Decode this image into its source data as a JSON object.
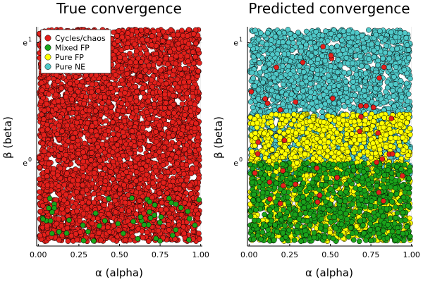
{
  "chart_data": [
    {
      "type": "scatter",
      "title": "True convergence",
      "xlabel": "α (alpha)",
      "ylabel": "β (beta)",
      "xlim": [
        -0.01,
        1.01
      ],
      "x_ticks": [
        0.0,
        0.25,
        0.5,
        0.75,
        1.0
      ],
      "x_tick_labels": [
        "0.00",
        "0.25",
        "0.50",
        "0.75",
        "1.00"
      ],
      "y_scale": "log",
      "ylim": [
        0.5,
        3.1
      ],
      "y_ticks": [
        1.0,
        2.718281828
      ],
      "y_tick_labels": [
        [
          "e",
          "0"
        ],
        [
          "e",
          "1"
        ]
      ],
      "grid": true,
      "legend_position": "top-left",
      "legend": [
        {
          "label": "Cycles/chaos",
          "color": "#e3201b"
        },
        {
          "label": "Mixed FP",
          "color": "#1aa31a"
        },
        {
          "label": "Pure FP",
          "color": "#ffff00"
        },
        {
          "label": "Pure NE",
          "color": "#4fc9c9"
        }
      ],
      "series_regions": [
        {
          "name": "Cycles/chaos",
          "color": "#e3201b",
          "y_range": [
            0.52,
            3.05
          ],
          "density": 1.0
        },
        {
          "name": "Mixed FP",
          "color": "#1aa31a",
          "y_range": [
            0.52,
            0.75
          ],
          "density": 0.05
        }
      ]
    },
    {
      "type": "scatter",
      "title": "Predicted convergence",
      "xlabel": "α (alpha)",
      "ylabel": "β (beta)",
      "xlim": [
        -0.01,
        1.01
      ],
      "x_ticks": [
        0.0,
        0.25,
        0.5,
        0.75,
        1.0
      ],
      "x_tick_labels": [
        "0.00",
        "0.25",
        "0.50",
        "0.75",
        "1.00"
      ],
      "y_scale": "log",
      "ylim": [
        0.5,
        3.1
      ],
      "y_ticks": [
        1.0,
        2.718281828
      ],
      "y_tick_labels": [
        [
          "e",
          "0"
        ],
        [
          "e",
          "1"
        ]
      ],
      "grid": true,
      "series_regions": [
        {
          "name": "Pure NE",
          "color": "#4fc9c9",
          "y_range": [
            0.9,
            3.05
          ],
          "density": 0.85
        },
        {
          "name": "Pure FP",
          "color": "#ffff00",
          "y_range": [
            0.52,
            1.5
          ],
          "density": 0.6
        },
        {
          "name": "Mixed FP",
          "color": "#1aa31a",
          "y_range": [
            0.52,
            1.0
          ],
          "density": 0.5
        },
        {
          "name": "Cycles/chaos",
          "color": "#e3201b",
          "y_range": [
            0.7,
            3.05
          ],
          "density": 0.01
        }
      ]
    }
  ]
}
